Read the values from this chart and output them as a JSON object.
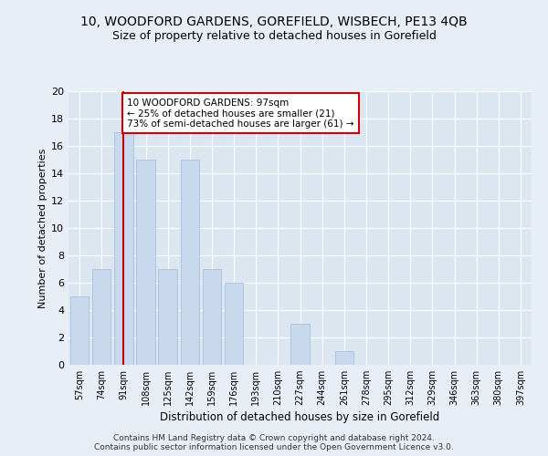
{
  "title1": "10, WOODFORD GARDENS, GOREFIELD, WISBECH, PE13 4QB",
  "title2": "Size of property relative to detached houses in Gorefield",
  "xlabel": "Distribution of detached houses by size in Gorefield",
  "ylabel": "Number of detached properties",
  "categories": [
    "57sqm",
    "74sqm",
    "91sqm",
    "108sqm",
    "125sqm",
    "142sqm",
    "159sqm",
    "176sqm",
    "193sqm",
    "210sqm",
    "227sqm",
    "244sqm",
    "261sqm",
    "278sqm",
    "295sqm",
    "312sqm",
    "329sqm",
    "346sqm",
    "363sqm",
    "380sqm",
    "397sqm"
  ],
  "values": [
    5,
    7,
    17,
    15,
    7,
    15,
    7,
    6,
    0,
    0,
    3,
    0,
    1,
    0,
    0,
    0,
    0,
    0,
    0,
    0,
    0
  ],
  "bar_color": "#c9d9ed",
  "bar_edge_color": "#a0b8d8",
  "vline_x": 2,
  "vline_color": "#cc0000",
  "annotation_lines": [
    "10 WOODFORD GARDENS: 97sqm",
    "← 25% of detached houses are smaller (21)",
    "73% of semi-detached houses are larger (61) →"
  ],
  "ylim": [
    0,
    20
  ],
  "yticks": [
    0,
    2,
    4,
    6,
    8,
    10,
    12,
    14,
    16,
    18,
    20
  ],
  "footer": "Contains HM Land Registry data © Crown copyright and database right 2024.\nContains public sector information licensed under the Open Government Licence v3.0.",
  "background_color": "#e8eef5",
  "plot_bg_color": "#dce6f0"
}
